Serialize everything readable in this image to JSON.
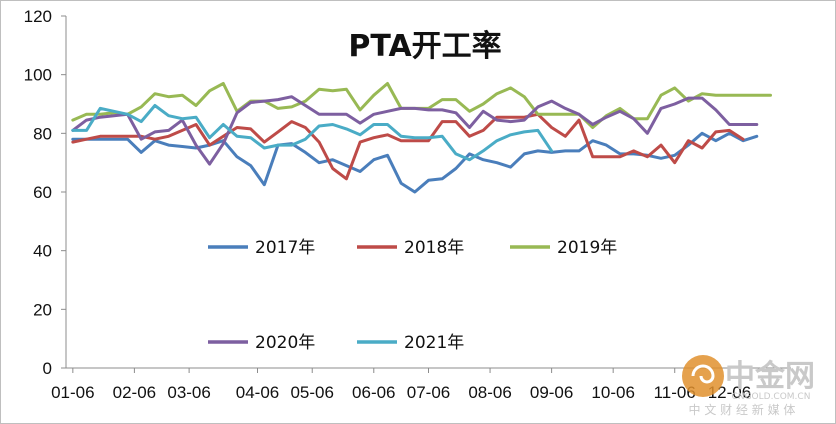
{
  "chart_data": {
    "type": "line",
    "title": "PTA开工率",
    "xlabel": "",
    "ylabel": "",
    "ylim": [
      0,
      120
    ],
    "yticks": [
      0,
      20,
      40,
      60,
      80,
      100,
      120
    ],
    "grid": false,
    "x_tick_labels": [
      "01-06",
      "02-06",
      "03-06",
      "04-06",
      "05-06",
      "06-06",
      "07-06",
      "08-06",
      "09-06",
      "10-06",
      "11-06",
      "12-06"
    ],
    "x_tick_positions": [
      0,
      4.5,
      8.5,
      13.5,
      17.5,
      22,
      26,
      30.5,
      35,
      39.5,
      44,
      48
    ],
    "x_count": 53,
    "series": [
      {
        "name": "2017年",
        "color": "#4a7ebb",
        "values": [
          78,
          78,
          78,
          78,
          78,
          73.5,
          77.5,
          76,
          75.5,
          75,
          76,
          77.5,
          72,
          69,
          62.5,
          76,
          76.5,
          73.5,
          70,
          71,
          69,
          67,
          71,
          72.5,
          63,
          60,
          64,
          64.5,
          68,
          73,
          71,
          70,
          68.5,
          73,
          74,
          73.5,
          74,
          74,
          77.5,
          76,
          73,
          73,
          72.5,
          71.5,
          72.5,
          76,
          80,
          77.5,
          80,
          77.5,
          79
        ]
      },
      {
        "name": "2018年",
        "color": "#be4b48",
        "values": [
          77,
          78,
          79,
          79,
          79,
          79,
          78,
          79,
          81,
          83,
          76,
          79,
          82,
          81.5,
          77,
          80.5,
          84,
          82,
          77,
          68,
          64.5,
          77,
          78.5,
          79.5,
          77.5,
          77.5,
          77.5,
          84,
          84,
          79,
          81,
          85.5,
          85.5,
          85.5,
          86.5,
          82,
          79,
          84.5,
          72,
          72,
          72,
          74,
          72,
          76,
          70,
          77.5,
          75,
          80.5,
          81,
          78
        ]
      },
      {
        "name": "2019年",
        "color": "#98b954",
        "values": [
          84.5,
          86.5,
          86.5,
          87,
          86.5,
          89,
          93.5,
          92.5,
          93,
          89.5,
          94.5,
          97,
          87.5,
          91,
          91,
          88.5,
          89,
          91,
          95,
          94.5,
          95,
          88,
          93,
          97,
          88.5,
          88.5,
          88.5,
          91.5,
          91.5,
          87.5,
          90,
          93.5,
          95.5,
          92.5,
          86.5,
          86.5,
          86.5,
          86.5,
          82,
          86,
          88.5,
          85,
          85,
          93,
          95.5,
          91,
          93.5,
          93,
          93,
          93,
          93,
          93
        ]
      },
      {
        "name": "2020年",
        "color": "#7d5fa0",
        "values": [
          81,
          84.5,
          85.5,
          86,
          86.5,
          78,
          80.5,
          81,
          84.5,
          76,
          69.5,
          76.5,
          87,
          90.5,
          91,
          91.5,
          92.5,
          89.5,
          86.5,
          86.5,
          86.5,
          83.5,
          86.5,
          87.5,
          88.5,
          88.5,
          88,
          88,
          87,
          82,
          87.5,
          84.5,
          84,
          84.5,
          89,
          91,
          88.5,
          86.5,
          83,
          85.5,
          87.5,
          85,
          80,
          88.5,
          90,
          92,
          92,
          88,
          83,
          83,
          83
        ]
      },
      {
        "name": "2021年",
        "color": "#4aacc6",
        "values": [
          81,
          81,
          88.5,
          87.5,
          86.5,
          84,
          89.5,
          86,
          85,
          85.5,
          78.5,
          83,
          79,
          78.5,
          75,
          76,
          76,
          78,
          82.5,
          83,
          81.5,
          79.5,
          83,
          83,
          79,
          78.5,
          78.5,
          79,
          73,
          71,
          74,
          77.5,
          79.5,
          80.5,
          81,
          74
        ]
      }
    ],
    "legend": [
      "2017年",
      "2018年",
      "2019年",
      "2020年",
      "2021年"
    ]
  },
  "watermark": {
    "brand": "中金网",
    "url": "CNGOLD.COM.CN",
    "slogan": "中 文 财 经 新 媒 体"
  }
}
